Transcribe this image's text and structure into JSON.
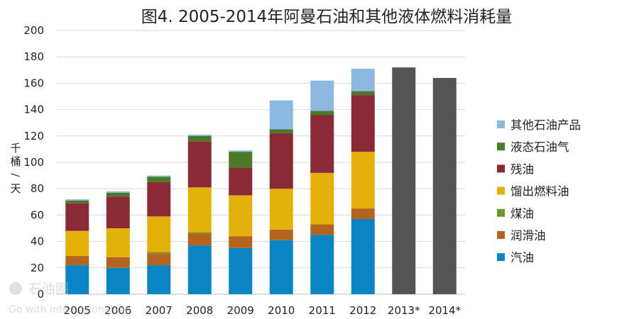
{
  "title": "图4. 2005-2014年阿曼石油和其他液体燃料消耗量",
  "watermark": {
    "logo_text": "石油圈",
    "tagline": "Go with international oil"
  },
  "chart_data": {
    "type": "bar",
    "stacked": true,
    "title": "图4. 2005-2014年阿曼石油和其他液体燃料消耗量",
    "ylabel": "千桶/天",
    "ylim": [
      0,
      200
    ],
    "yticks": [
      0,
      20,
      40,
      60,
      80,
      100,
      120,
      140,
      160,
      180,
      200
    ],
    "grid": true,
    "legend_position": "right",
    "categories": [
      "2005",
      "2006",
      "2007",
      "2008",
      "2009",
      "2010",
      "2011",
      "2012",
      "2013*",
      "2014*"
    ],
    "series": [
      {
        "name": "汽油",
        "color": "#0b84c4",
        "values": [
          22,
          20,
          22,
          37,
          35,
          41,
          45,
          57,
          null,
          null
        ]
      },
      {
        "name": "润滑油",
        "color": "#b36520",
        "values": [
          7,
          8,
          9,
          9,
          9,
          8,
          8,
          8,
          null,
          null
        ]
      },
      {
        "name": "煤油",
        "color": "#6a9a2e",
        "values": [
          0,
          0,
          1,
          1,
          0,
          0,
          0,
          0,
          null,
          null
        ]
      },
      {
        "name": "馏出燃料油",
        "color": "#e4b10b",
        "values": [
          19,
          22,
          27,
          34,
          31,
          31,
          39,
          43,
          null,
          null
        ]
      },
      {
        "name": "残油",
        "color": "#8b2a37",
        "values": [
          21,
          24,
          26,
          35,
          21,
          42,
          44,
          43,
          null,
          null
        ]
      },
      {
        "name": "液态石油气",
        "color": "#4a7a27",
        "values": [
          2,
          3,
          4,
          4,
          12,
          3,
          3,
          3,
          null,
          null
        ]
      },
      {
        "name": "其他石油产品",
        "color": "#8cb8e2",
        "values": [
          1,
          1,
          1,
          1,
          1,
          22,
          23,
          17,
          null,
          null
        ]
      }
    ],
    "totals_only": {
      "color": "#545454",
      "values": [
        null,
        null,
        null,
        null,
        null,
        null,
        null,
        null,
        172,
        164
      ]
    },
    "legend_order": [
      "其他石油产品",
      "液态石油气",
      "残油",
      "馏出燃料油",
      "煤油",
      "润滑油",
      "汽油"
    ]
  }
}
